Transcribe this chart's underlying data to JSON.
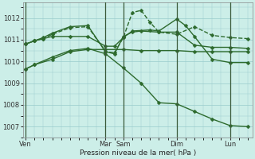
{
  "background_color": "#cceee8",
  "grid_color": "#99cccc",
  "line_color": "#2d6a2d",
  "ylim": [
    1006.5,
    1012.7
  ],
  "yticks": [
    1007,
    1008,
    1009,
    1010,
    1011,
    1012
  ],
  "xlabel": "Pression niveau de la mer( hPa )",
  "x_tick_labels": [
    "Ven",
    "Mar",
    "Sam",
    "Dim",
    "Lun"
  ],
  "x_tick_positions": [
    0,
    9,
    11,
    17,
    23
  ],
  "xlim": [
    -0.3,
    25.5
  ],
  "vlines": [
    0,
    9,
    11,
    17,
    23
  ],
  "lines": [
    {
      "x": [
        0,
        1,
        3,
        5,
        7,
        9,
        11,
        13,
        15,
        17,
        19,
        21,
        23,
        25
      ],
      "y": [
        1009.65,
        1009.85,
        1010.1,
        1010.45,
        1010.55,
        1010.55,
        1010.55,
        1010.5,
        1010.5,
        1010.5,
        1010.45,
        1010.45,
        1010.45,
        1010.45
      ],
      "style": "-",
      "marker": "D",
      "markersize": 2.5,
      "linewidth": 1.0
    },
    {
      "x": [
        0,
        1,
        3,
        5,
        7,
        9,
        11,
        13,
        15,
        17,
        19,
        21,
        23,
        25
      ],
      "y": [
        1009.65,
        1009.85,
        1010.2,
        1010.5,
        1010.6,
        1010.35,
        1009.7,
        1009.0,
        1008.1,
        1008.05,
        1007.7,
        1007.35,
        1007.05,
        1007.0
      ],
      "style": "-",
      "marker": "D",
      "markersize": 2.5,
      "linewidth": 1.0
    },
    {
      "x": [
        0,
        1,
        2,
        3,
        5,
        7,
        9,
        10,
        11,
        12,
        13,
        15,
        17,
        19,
        21,
        23,
        25
      ],
      "y": [
        1010.8,
        1010.95,
        1011.1,
        1011.3,
        1011.6,
        1011.65,
        1010.45,
        1010.35,
        1011.15,
        1011.35,
        1011.4,
        1011.35,
        1011.35,
        1010.75,
        1010.65,
        1010.65,
        1010.6
      ],
      "style": "-",
      "marker": "D",
      "markersize": 2.5,
      "linewidth": 1.0
    },
    {
      "x": [
        0,
        1,
        2,
        3,
        5,
        7,
        9,
        10,
        11,
        12,
        13,
        14,
        15,
        17,
        19,
        21,
        23,
        25
      ],
      "y": [
        1010.8,
        1010.95,
        1011.05,
        1011.25,
        1011.55,
        1011.6,
        1010.45,
        1010.4,
        1011.1,
        1012.25,
        1012.35,
        1011.8,
        1011.35,
        1011.25,
        1011.6,
        1011.2,
        1011.1,
        1011.05
      ],
      "style": "--",
      "marker": "D",
      "markersize": 2.5,
      "linewidth": 1.0
    },
    {
      "x": [
        0,
        1,
        2,
        3,
        5,
        7,
        9,
        10,
        11,
        12,
        14,
        15,
        17,
        18,
        19,
        21,
        23,
        25
      ],
      "y": [
        1010.8,
        1010.95,
        1011.05,
        1011.15,
        1011.15,
        1011.15,
        1010.7,
        1010.7,
        1011.1,
        1011.4,
        1011.45,
        1011.4,
        1011.95,
        1011.65,
        1011.15,
        1010.1,
        1009.95,
        1009.95
      ],
      "style": "-",
      "marker": "D",
      "markersize": 2.5,
      "linewidth": 1.0
    }
  ]
}
